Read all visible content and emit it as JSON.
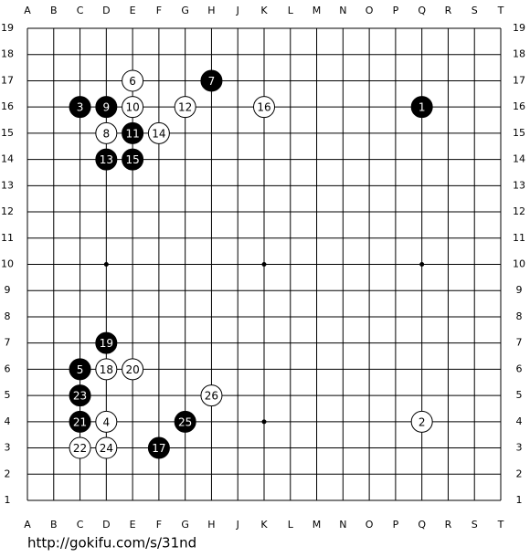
{
  "board": {
    "columns": [
      "A",
      "B",
      "C",
      "D",
      "E",
      "F",
      "G",
      "H",
      "J",
      "K",
      "L",
      "M",
      "N",
      "O",
      "P",
      "Q",
      "R",
      "S",
      "T"
    ],
    "rows": [
      19,
      18,
      17,
      16,
      15,
      14,
      13,
      12,
      11,
      10,
      9,
      8,
      7,
      6,
      5,
      4,
      3,
      2,
      1
    ],
    "stones": [
      {
        "move": 1,
        "color": "black",
        "col": "Q",
        "row": 16
      },
      {
        "move": 2,
        "color": "white",
        "col": "Q",
        "row": 4
      },
      {
        "move": 3,
        "color": "black",
        "col": "C",
        "row": 16
      },
      {
        "move": 4,
        "color": "white",
        "col": "D",
        "row": 4
      },
      {
        "move": 5,
        "color": "black",
        "col": "C",
        "row": 6
      },
      {
        "move": 6,
        "color": "white",
        "col": "E",
        "row": 17
      },
      {
        "move": 7,
        "color": "black",
        "col": "H",
        "row": 17
      },
      {
        "move": 8,
        "color": "white",
        "col": "D",
        "row": 15
      },
      {
        "move": 9,
        "color": "black",
        "col": "D",
        "row": 16
      },
      {
        "move": 10,
        "color": "white",
        "col": "E",
        "row": 16
      },
      {
        "move": 11,
        "color": "black",
        "col": "E",
        "row": 15
      },
      {
        "move": 12,
        "color": "white",
        "col": "G",
        "row": 16
      },
      {
        "move": 13,
        "color": "black",
        "col": "D",
        "row": 14
      },
      {
        "move": 14,
        "color": "white",
        "col": "F",
        "row": 15
      },
      {
        "move": 15,
        "color": "black",
        "col": "E",
        "row": 14
      },
      {
        "move": 16,
        "color": "white",
        "col": "K",
        "row": 16
      },
      {
        "move": 17,
        "color": "black",
        "col": "F",
        "row": 3
      },
      {
        "move": 18,
        "color": "white",
        "col": "D",
        "row": 6
      },
      {
        "move": 19,
        "color": "black",
        "col": "D",
        "row": 7
      },
      {
        "move": 20,
        "color": "white",
        "col": "E",
        "row": 6
      },
      {
        "move": 21,
        "color": "black",
        "col": "C",
        "row": 4
      },
      {
        "move": 22,
        "color": "white",
        "col": "C",
        "row": 3
      },
      {
        "move": 23,
        "color": "black",
        "col": "C",
        "row": 5
      },
      {
        "move": 24,
        "color": "white",
        "col": "D",
        "row": 3
      },
      {
        "move": 25,
        "color": "black",
        "col": "G",
        "row": 4
      },
      {
        "move": 26,
        "color": "white",
        "col": "H",
        "row": 5
      }
    ]
  },
  "footer": {
    "url": "http://gokifu.com/s/31nd"
  }
}
